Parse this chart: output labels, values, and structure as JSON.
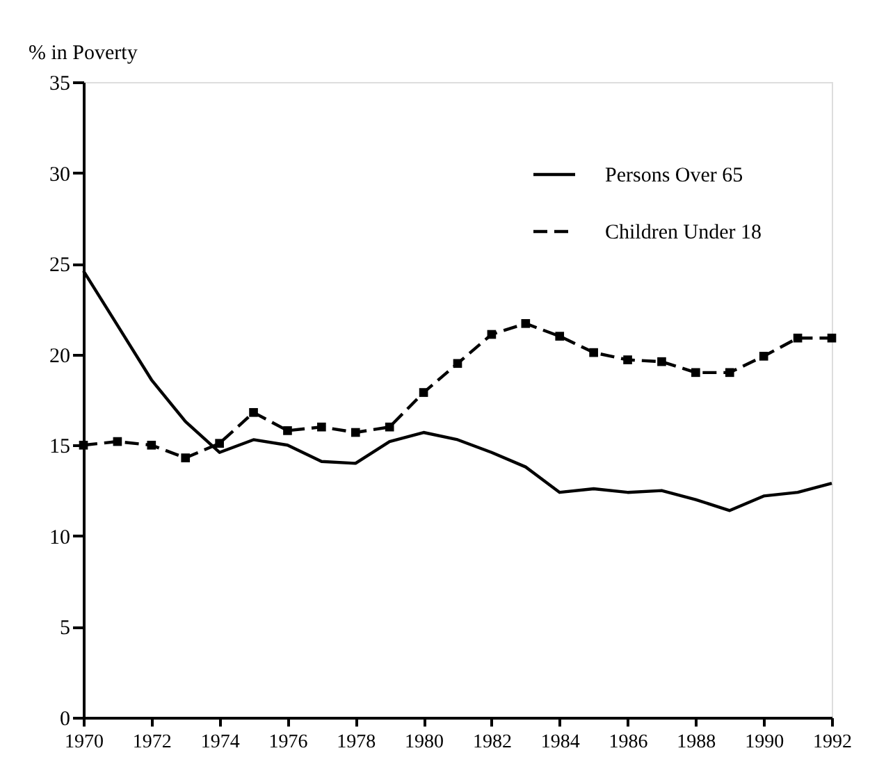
{
  "chart_data": {
    "type": "line",
    "ylabel": "% in Poverty",
    "x": [
      1970,
      1971,
      1972,
      1973,
      1974,
      1975,
      1976,
      1977,
      1978,
      1979,
      1980,
      1981,
      1982,
      1983,
      1984,
      1985,
      1986,
      1987,
      1988,
      1989,
      1990,
      1991,
      1992
    ],
    "series": [
      {
        "name": "Persons Over 65",
        "color": "#000000",
        "line_style": "solid",
        "marker": "none",
        "values": [
          24.6,
          21.6,
          18.6,
          16.3,
          14.6,
          15.3,
          15.0,
          14.1,
          14.0,
          15.2,
          15.7,
          15.3,
          14.6,
          13.8,
          12.4,
          12.6,
          12.4,
          12.5,
          12.0,
          11.4,
          12.2,
          12.4,
          12.9
        ]
      },
      {
        "name": "Children Under 18",
        "color": "#000000",
        "line_style": "dashed",
        "marker": "square",
        "values": [
          15.0,
          15.2,
          15.0,
          14.3,
          15.1,
          16.8,
          15.8,
          16.0,
          15.7,
          16.0,
          17.9,
          19.5,
          21.1,
          21.7,
          21.0,
          20.1,
          19.7,
          19.6,
          19.0,
          19.0,
          19.9,
          20.9,
          20.9
        ]
      }
    ],
    "xlim": [
      1970,
      1992
    ],
    "xticks": [
      1970,
      1972,
      1974,
      1976,
      1978,
      1980,
      1982,
      1984,
      1986,
      1988,
      1990,
      1992
    ],
    "ylim": [
      0,
      35
    ],
    "yticks": [
      0,
      5,
      10,
      15,
      20,
      25,
      30,
      35
    ],
    "grid": false,
    "legend": "top right"
  }
}
